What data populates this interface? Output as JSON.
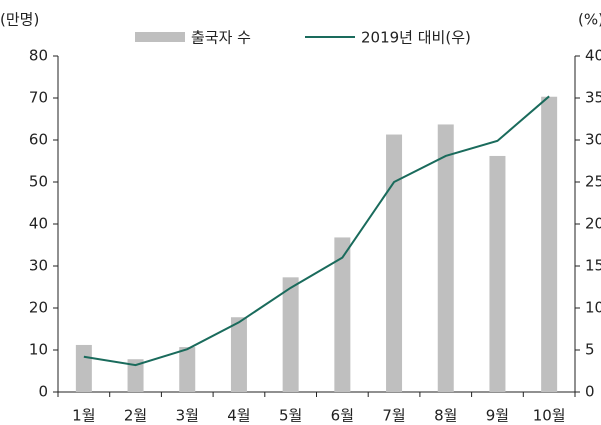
{
  "chart_data": {
    "type": "bar_line",
    "y_label": "(만명)",
    "y2_label": "(%)",
    "categories": [
      "1월",
      "2월",
      "3월",
      "4월",
      "5월",
      "6월",
      "7월",
      "8월",
      "9월",
      "10월"
    ],
    "series": [
      {
        "name": "출국자 수",
        "type": "bar",
        "color": "#bfbfbf",
        "values": [
          11.2,
          7.8,
          10.7,
          17.8,
          27.3,
          36.8,
          61.3,
          63.7,
          56.2,
          70.3
        ]
      },
      {
        "name": "2019년 대비(우)",
        "type": "line",
        "axis": "y2",
        "color": "#1a6b5c",
        "values": [
          4.2,
          3.2,
          5.1,
          8.3,
          12.4,
          16.0,
          25.0,
          28.1,
          29.9,
          35.2
        ]
      }
    ],
    "ylim": [
      0,
      80
    ],
    "yticks": [
      0,
      10,
      20,
      30,
      40,
      50,
      60,
      70,
      80
    ],
    "y2lim": [
      0,
      40
    ],
    "y2ticks": [
      0,
      5,
      10,
      15,
      20,
      25,
      30,
      35,
      40
    ]
  }
}
